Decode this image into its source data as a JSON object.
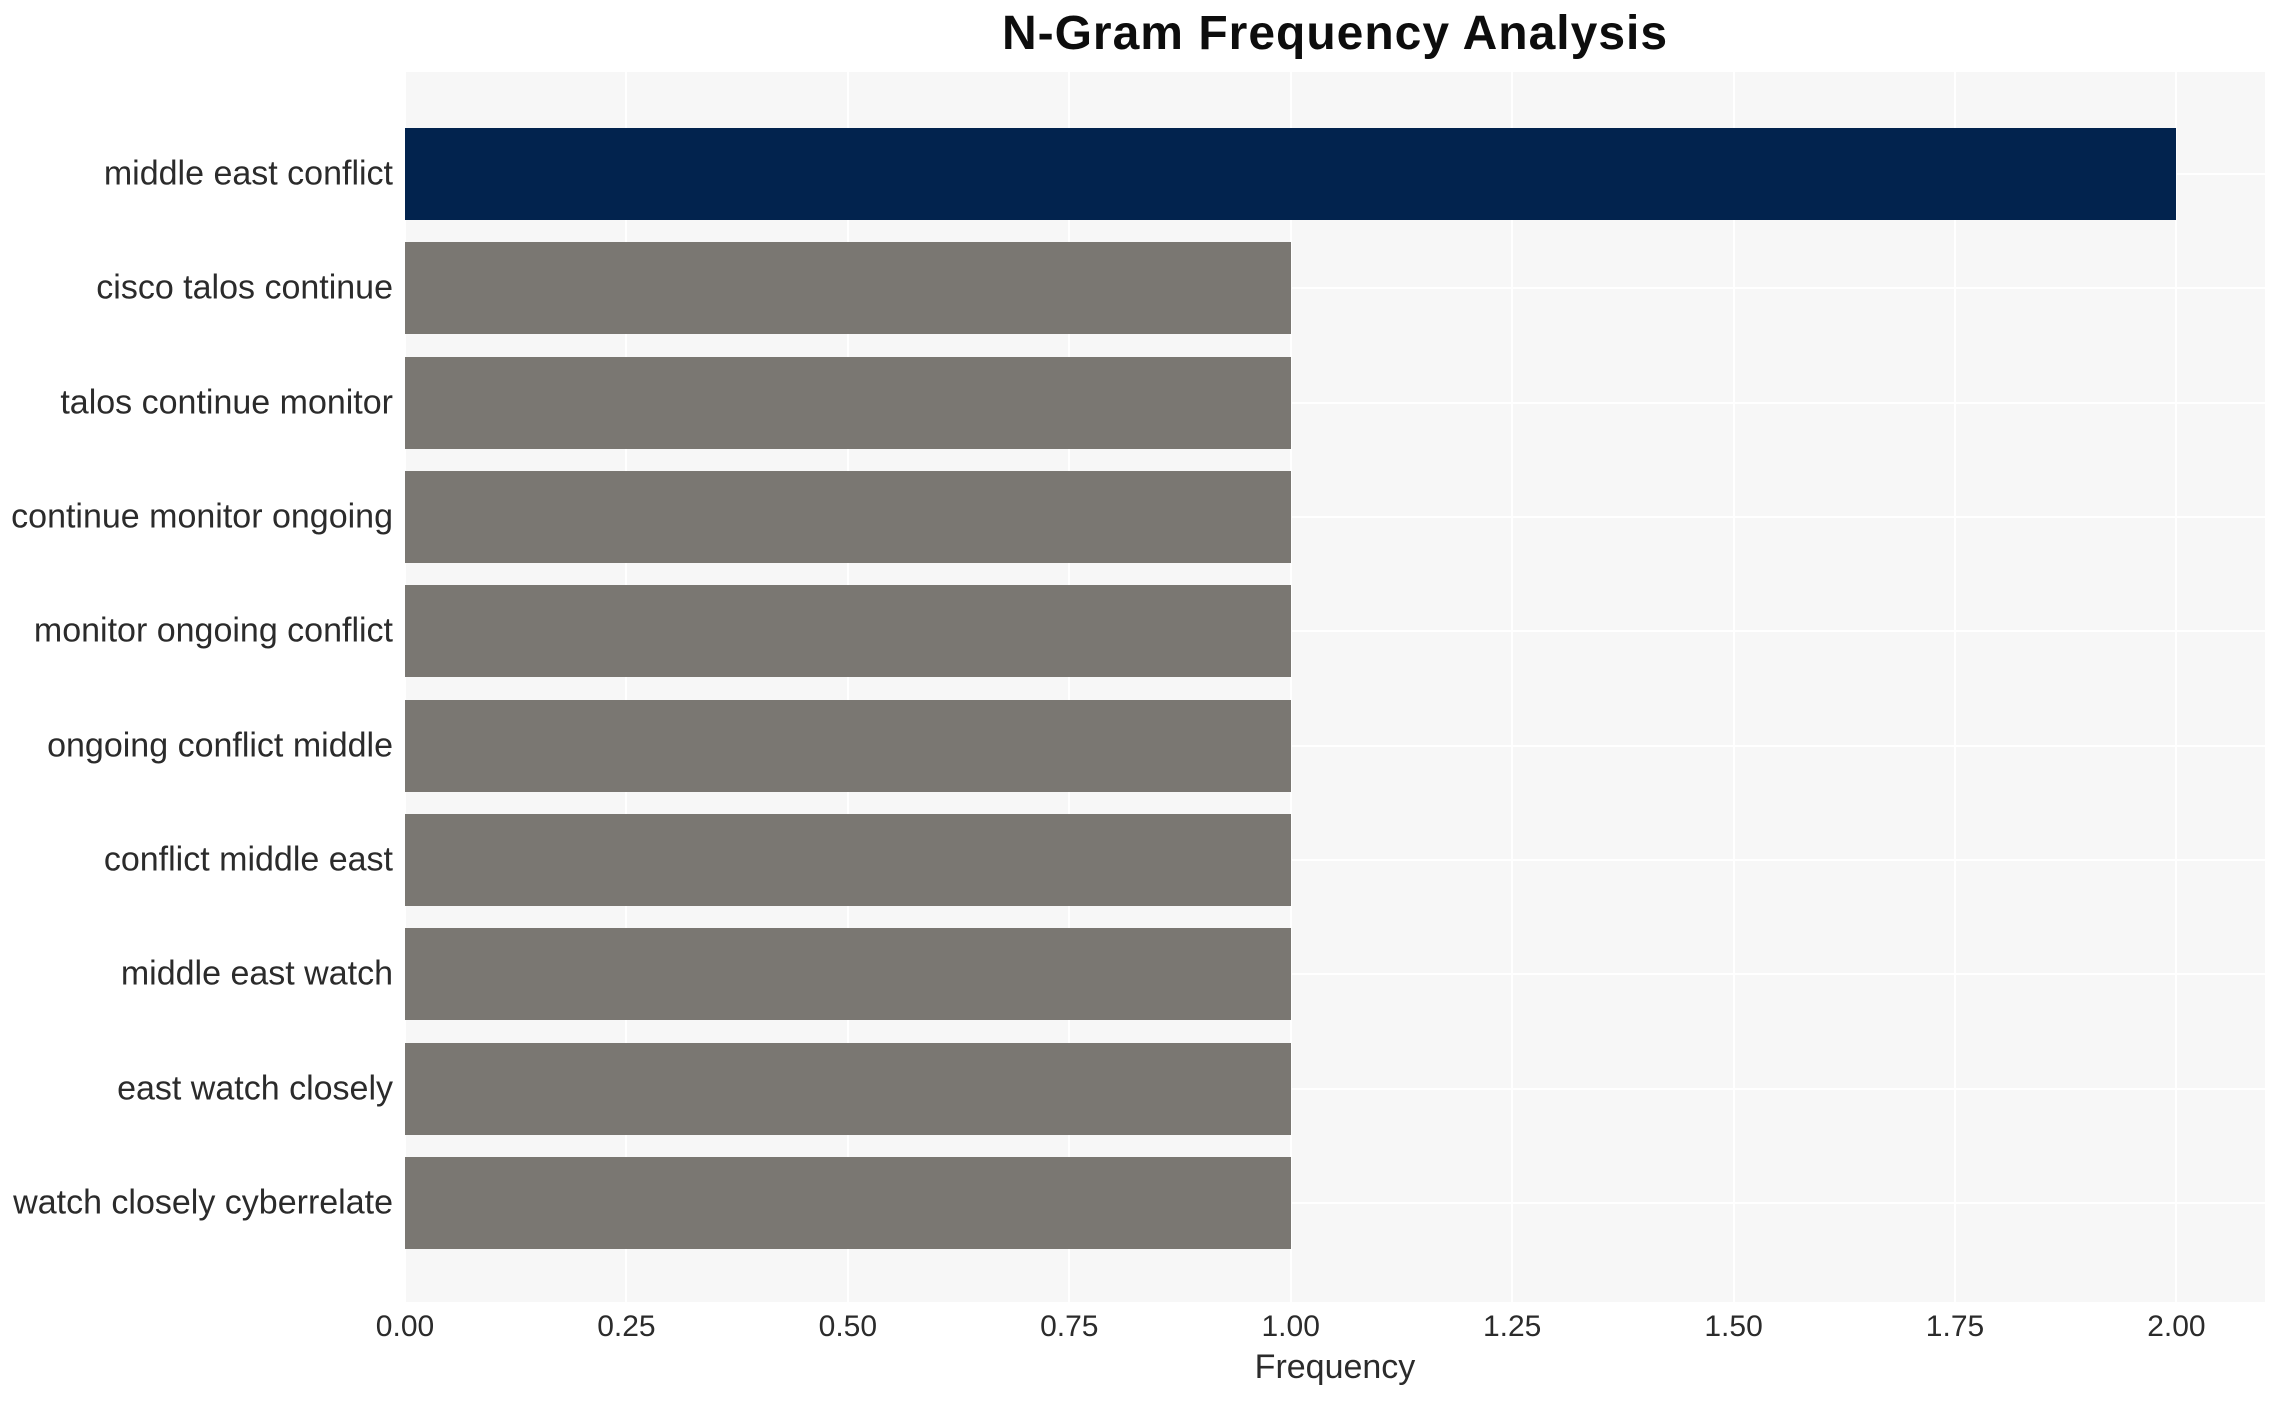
{
  "chart_data": {
    "type": "bar",
    "orientation": "horizontal",
    "title": "N-Gram Frequency Analysis",
    "xlabel": "Frequency",
    "ylabel": "",
    "categories": [
      "middle east conflict",
      "cisco talos continue",
      "talos continue monitor",
      "continue monitor ongoing",
      "monitor ongoing conflict",
      "ongoing conflict middle",
      "conflict middle east",
      "middle east watch",
      "east watch closely",
      "watch closely cyberrelate"
    ],
    "values": [
      2,
      1,
      1,
      1,
      1,
      1,
      1,
      1,
      1,
      1
    ],
    "xlim": [
      0,
      2.1
    ],
    "xtick_labels": [
      "0.00",
      "0.25",
      "0.50",
      "0.75",
      "1.00",
      "1.25",
      "1.50",
      "1.75",
      "2.00"
    ],
    "bar_colors": [
      "#02234e",
      "#7a7772",
      "#7a7772",
      "#7a7772",
      "#7a7772",
      "#7a7772",
      "#7a7772",
      "#7a7772",
      "#7a7772",
      "#7a7772"
    ],
    "grid": true,
    "legend": false,
    "colors": {
      "highlight_bar": "#02234e",
      "default_bar": "#7a7772",
      "plot_background": "#f7f7f7",
      "gridline": "#ffffff",
      "tick_text": "#2b2b2b",
      "title_text": "#0d0d0d"
    }
  }
}
